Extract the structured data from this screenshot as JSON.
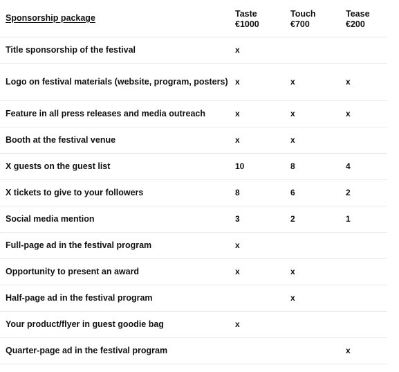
{
  "header": {
    "feature_label": "Sponsorship package",
    "tiers": [
      {
        "name": "Taste",
        "price": "€1000"
      },
      {
        "name": "Touch",
        "price": "€700"
      },
      {
        "name": "Tease",
        "price": "€200"
      }
    ]
  },
  "rows": [
    {
      "feature": "Title sponsorship of the festival",
      "values": [
        "x",
        "",
        ""
      ]
    },
    {
      "feature": "Logo on festival materials (website, program, posters)",
      "values": [
        "x",
        "x",
        "x"
      ]
    },
    {
      "feature": "Feature in all press releases and media outreach",
      "values": [
        "x",
        "x",
        "x"
      ]
    },
    {
      "feature": "Booth at the festival venue",
      "values": [
        "x",
        "x",
        ""
      ]
    },
    {
      "feature": "X guests on the guest list",
      "values": [
        "10",
        "8",
        "4"
      ]
    },
    {
      "feature": "X tickets to give to your followers",
      "values": [
        "8",
        "6",
        "2"
      ]
    },
    {
      "feature": "Social media mention",
      "values": [
        "3",
        "2",
        "1"
      ]
    },
    {
      "feature": "Full-page ad in the festival program",
      "values": [
        "x",
        "",
        ""
      ]
    },
    {
      "feature": "Opportunity to present an award",
      "values": [
        "x",
        "x",
        ""
      ]
    },
    {
      "feature": "Half-page ad in the festival program",
      "values": [
        "",
        "x",
        ""
      ]
    },
    {
      "feature": "Your product/flyer in guest goodie bag",
      "values": [
        "x",
        "",
        ""
      ]
    },
    {
      "feature": "Quarter-page ad in the festival program",
      "values": [
        "",
        "",
        "x"
      ]
    }
  ]
}
